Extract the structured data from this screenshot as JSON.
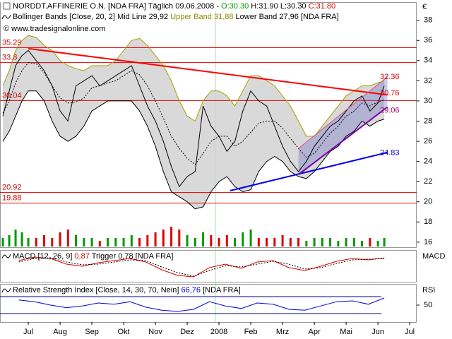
{
  "chart_data": [
    {
      "type": "line",
      "header": [
        {
          "text": "NORDDT.AFFINERIE O.N. [NDA FRA]  Täglich 09.06.2008 - ",
          "color": "#000000"
        },
        {
          "text": "O:30.30",
          "color": "#009900"
        },
        {
          "text": " H:31.90",
          "color": "#000000"
        },
        {
          "text": " L:30.30",
          "color": "#000000"
        },
        {
          "text": " C:31.80",
          "color": "#dd0000"
        }
      ],
      "legend": [
        {
          "text": "Bollinger Bands [Close, 20, 2]",
          "color": "#000000"
        },
        {
          "text": " Mid Line 29,92",
          "color": "#000000"
        },
        {
          "text": " Upper Band 31,88",
          "color": "#8a8a00"
        },
        {
          "text": " Lower Band 27,96",
          "color": "#000000"
        },
        {
          "text": " [NDA FRA]",
          "color": "#000000"
        }
      ],
      "source": "© www.tradesignalonline.com",
      "unit": "€",
      "x": [
        6.2,
        6.4,
        6.6,
        6.8,
        7.0,
        7.25,
        7.5,
        7.75,
        8.0,
        8.25,
        8.5,
        8.75,
        9.0,
        9.25,
        9.5,
        9.75,
        10.0,
        10.25,
        10.5,
        10.75,
        11.0,
        11.25,
        11.5,
        11.75,
        12.0,
        12.25,
        12.5,
        12.75,
        13.0,
        13.25,
        13.5,
        13.75,
        14.0,
        14.25,
        14.5,
        14.75,
        15.0,
        15.25,
        15.5,
        15.75,
        16.0,
        16.25,
        16.5,
        16.75,
        17.0,
        17.25,
        17.5,
        17.75,
        18.0,
        18.2
      ],
      "series": [
        {
          "color": "#000000",
          "values": [
            28.5,
            31,
            33.5,
            34.5,
            35,
            34,
            33,
            31.5,
            29,
            28,
            31.5,
            32,
            32.5,
            31.5,
            32,
            32.5,
            33,
            33.5,
            31.5,
            29.5,
            28,
            26,
            23.5,
            21.5,
            22.5,
            23,
            29.5,
            27.5,
            26.5,
            25,
            26,
            29,
            31,
            30,
            29.5,
            27.5,
            25.5,
            24,
            23,
            24,
            25.5,
            26.5,
            27.5,
            28,
            29,
            30,
            30.5,
            29,
            29.8,
            31.5
          ]
        },
        {
          "color": "#a0a000",
          "values": [
            31.5,
            33,
            35,
            36,
            36.5,
            36.3,
            35.5,
            35,
            34,
            33.5,
            33.2,
            33,
            33.5,
            33.5,
            33.5,
            34,
            35,
            36,
            36.2,
            35.5,
            34.5,
            33.5,
            32,
            30,
            28.5,
            28,
            30,
            31,
            31,
            30.5,
            29.5,
            31,
            32.5,
            32.5,
            32,
            31.5,
            30.5,
            29.5,
            28,
            26.5,
            26.5,
            27.5,
            28.5,
            29.5,
            30.5,
            31,
            31.5,
            31.5,
            31.8,
            32
          ]
        },
        {
          "color": "#000000",
          "values": [
            26,
            27,
            28.5,
            30,
            31,
            31,
            30,
            28,
            26.5,
            26,
            26.5,
            27.5,
            29,
            29.5,
            30,
            30,
            30,
            30,
            29,
            27.5,
            25.5,
            23,
            21,
            20.5,
            20,
            19.3,
            19.5,
            21,
            22,
            22.5,
            21.5,
            21,
            21.2,
            23,
            24,
            24.5,
            24,
            23,
            22.5,
            22.3,
            23,
            24,
            25,
            25.5,
            26.5,
            27,
            28,
            27.5,
            28,
            28.2
          ]
        },
        {
          "color": "#000000",
          "dash": true,
          "values": [
            28.8,
            30,
            31.8,
            33,
            33.8,
            33.7,
            32.8,
            31.5,
            30.3,
            29.8,
            29.9,
            30.3,
            31.3,
            31.5,
            31.8,
            32,
            32.5,
            33,
            32.6,
            31.5,
            30,
            28.3,
            26.5,
            25.3,
            24.3,
            23.7,
            24.8,
            26,
            26.5,
            26.5,
            25.5,
            26,
            26.9,
            27.8,
            28,
            28,
            27.3,
            26.3,
            25.3,
            24.4,
            24.8,
            25.8,
            26.8,
            27.5,
            28.5,
            29,
            29.8,
            29.5,
            29.9,
            30.1
          ]
        }
      ],
      "band_fill": "#cfcfcf",
      "volume": {
        "values": [
          3,
          4,
          6,
          5,
          3,
          3,
          4,
          3,
          5,
          6,
          4,
          3,
          3,
          2,
          3,
          3,
          3,
          4,
          3,
          4,
          5,
          6,
          7,
          6,
          4,
          3,
          5,
          4,
          3,
          4,
          3,
          5,
          6,
          3,
          3,
          3,
          4,
          3,
          3,
          2,
          3,
          3,
          3,
          2,
          3,
          3,
          2,
          3,
          2,
          3
        ],
        "ylim": [
          0,
          10
        ],
        "up_color": "#009900",
        "down_color": "#dd0000"
      },
      "levels": [
        {
          "value": 35.29,
          "color": "#dd0000"
        },
        {
          "value": 33.8,
          "color": "#dd0000"
        },
        {
          "value": 30.04,
          "color": "#dd0000"
        },
        {
          "value": 20.92,
          "color": "#dd0000"
        },
        {
          "value": 19.88,
          "color": "#dd0000"
        }
      ],
      "annotations": [
        {
          "value": 32.36,
          "color": "#dd0000"
        },
        {
          "value": 30.76,
          "color": "#dd0000"
        },
        {
          "value": 29.06,
          "color": "#b0006a"
        },
        {
          "value": 24.83,
          "color": "#0000dd"
        }
      ],
      "trendlines": [
        {
          "color": "#ff0000",
          "width": 2,
          "x": [
            7.0,
            18.3
          ],
          "y": [
            35.2,
            30.6
          ]
        },
        {
          "color": "#0000ee",
          "width": 2,
          "x": [
            13.35,
            18.3
          ],
          "y": [
            21.1,
            24.9
          ]
        },
        {
          "color": "#7a00a0",
          "width": 2,
          "x": [
            15.5,
            18.3
          ],
          "y": [
            22.7,
            29.4
          ]
        },
        {
          "color": "#e05080",
          "width": 1,
          "x": [
            15.5,
            18.3
          ],
          "y": [
            25.3,
            32.4
          ]
        }
      ],
      "channel_fill": "#6a6ac8",
      "xlim": [
        6.11,
        19.22
      ],
      "ylim": [
        15.5,
        39.8
      ],
      "yticks": [
        16,
        18,
        20,
        22,
        24,
        26,
        28,
        30,
        32,
        34,
        36,
        38
      ]
    },
    {
      "type": "line",
      "legend": [
        {
          "text": "MACD [12, 26, 9]",
          "color": "#000000"
        },
        {
          "text": " 0,87",
          "color": "#dd0000"
        },
        {
          "text": " Trigger 0,78",
          "color": "#000000"
        },
        {
          "text": " [NDA FRA]",
          "color": "#000000"
        }
      ],
      "label": "MACD",
      "x": [
        6.7,
        7.2,
        7.7,
        8.2,
        8.7,
        9.2,
        9.7,
        10.2,
        10.7,
        11.2,
        11.7,
        12.2,
        12.7,
        13.2,
        13.7,
        14.2,
        14.7,
        15.2,
        15.7,
        16.2,
        16.7,
        17.2,
        17.7,
        18.2
      ],
      "series": [
        {
          "color": "#dd0000",
          "values": [
            0.5,
            1,
            0.8,
            0,
            -0.3,
            0.2,
            0.5,
            0.8,
            0.3,
            -0.8,
            -1.6,
            -1.8,
            -0.5,
            0,
            -0.6,
            0.3,
            0.5,
            -0.5,
            -0.9,
            -0.3,
            0.4,
            0.8,
            0.6,
            0.87
          ]
        },
        {
          "color": "#000000",
          "dash": true,
          "values": [
            0.3,
            0.8,
            0.9,
            0.3,
            -0.1,
            0,
            0.3,
            0.6,
            0.5,
            -0.4,
            -1.2,
            -1.7,
            -0.9,
            -0.2,
            -0.4,
            0,
            0.4,
            0,
            -0.7,
            -0.5,
            0.1,
            0.6,
            0.7,
            0.78
          ]
        }
      ],
      "xlim": [
        6.11,
        19.22
      ],
      "ylim": [
        -2.5,
        2
      ]
    },
    {
      "type": "line",
      "legend": [
        {
          "text": "Relative Strength Index [Close, 14, 30, 70, Nein]",
          "color": "#000000"
        },
        {
          "text": " 66,76",
          "color": "#0000dd"
        },
        {
          "text": " [NDA FRA]",
          "color": "#000000"
        }
      ],
      "label": "RSI",
      "x": [
        6.7,
        7.2,
        7.7,
        8.2,
        8.7,
        9.2,
        9.7,
        10.2,
        10.7,
        11.2,
        11.7,
        12.2,
        12.7,
        13.2,
        13.7,
        14.2,
        14.7,
        15.2,
        15.7,
        16.2,
        16.7,
        17.2,
        17.7,
        18.2
      ],
      "series": [
        {
          "color": "#0000dd",
          "values": [
            62,
            58,
            50,
            44,
            48,
            55,
            52,
            58,
            45,
            38,
            35,
            40,
            58,
            48,
            42,
            55,
            52,
            40,
            38,
            48,
            58,
            60,
            52,
            66.76
          ]
        }
      ],
      "hlines": [
        30,
        70
      ],
      "xlim": [
        6.11,
        19.22
      ],
      "ylim": [
        10,
        100
      ],
      "yticks": [
        50
      ],
      "xticks": [
        {
          "value": 7,
          "label": "Jul"
        },
        {
          "value": 8,
          "label": "Aug"
        },
        {
          "value": 9,
          "label": "Sep"
        },
        {
          "value": 10,
          "label": "Okt"
        },
        {
          "value": 11,
          "label": "Nov"
        },
        {
          "value": 12,
          "label": "Dez"
        },
        {
          "value": 13,
          "label": "2008"
        },
        {
          "value": 14,
          "label": "Feb"
        },
        {
          "value": 15,
          "label": "Mrz"
        },
        {
          "value": 16,
          "label": "Apr"
        },
        {
          "value": 17,
          "label": "Mai"
        },
        {
          "value": 18,
          "label": "Jun"
        },
        {
          "value": 19,
          "label": "Jul"
        }
      ]
    }
  ]
}
